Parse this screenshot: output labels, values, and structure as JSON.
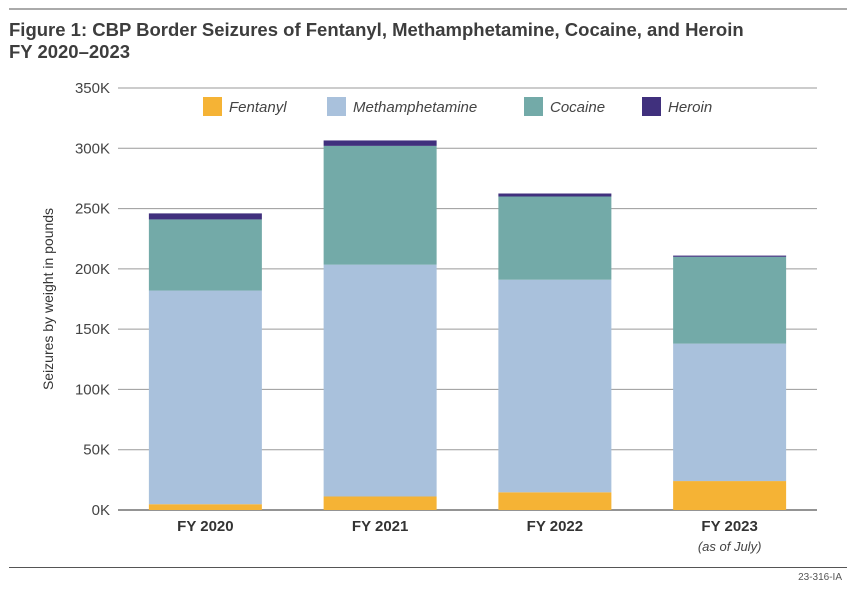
{
  "figure": {
    "title_line1": "Figure 1: CBP Border Seizures of Fentanyl, Methamphetamine, Cocaine, and Heroin",
    "title_line2": "FY 2020–2023",
    "code": "23-316-IA"
  },
  "chart_data": {
    "type": "bar",
    "stacked": true,
    "title": "Figure 1: CBP Border Seizures of Fentanyl, Methamphetamine, Cocaine, and Heroin FY 2020–2023",
    "xlabel": "",
    "ylabel": "Seizures by weight in pounds",
    "ylim": [
      0,
      350000
    ],
    "yticks": [
      0,
      50000,
      100000,
      150000,
      200000,
      250000,
      300000,
      350000
    ],
    "ytick_labels": [
      "0K",
      "50K",
      "100K",
      "150K",
      "200K",
      "250K",
      "300K",
      "350K"
    ],
    "grid": true,
    "legend_position": "top",
    "categories": [
      "FY 2020",
      "FY 2021",
      "FY 2022",
      "FY 2023"
    ],
    "category_notes": [
      "",
      "",
      "",
      "(as of July)"
    ],
    "series": [
      {
        "name": "Fentanyl",
        "color": "#f5b335",
        "values": [
          4800,
          11200,
          14700,
          24000
        ]
      },
      {
        "name": "Methamphetamine",
        "color": "#a9c1dc",
        "values": [
          177200,
          192300,
          176300,
          114000
        ]
      },
      {
        "name": "Cocaine",
        "color": "#73aaa8",
        "values": [
          59000,
          98500,
          69000,
          72000
        ]
      },
      {
        "name": "Heroin",
        "color": "#40307d",
        "values": [
          5000,
          4500,
          2500,
          1000
        ]
      }
    ]
  }
}
